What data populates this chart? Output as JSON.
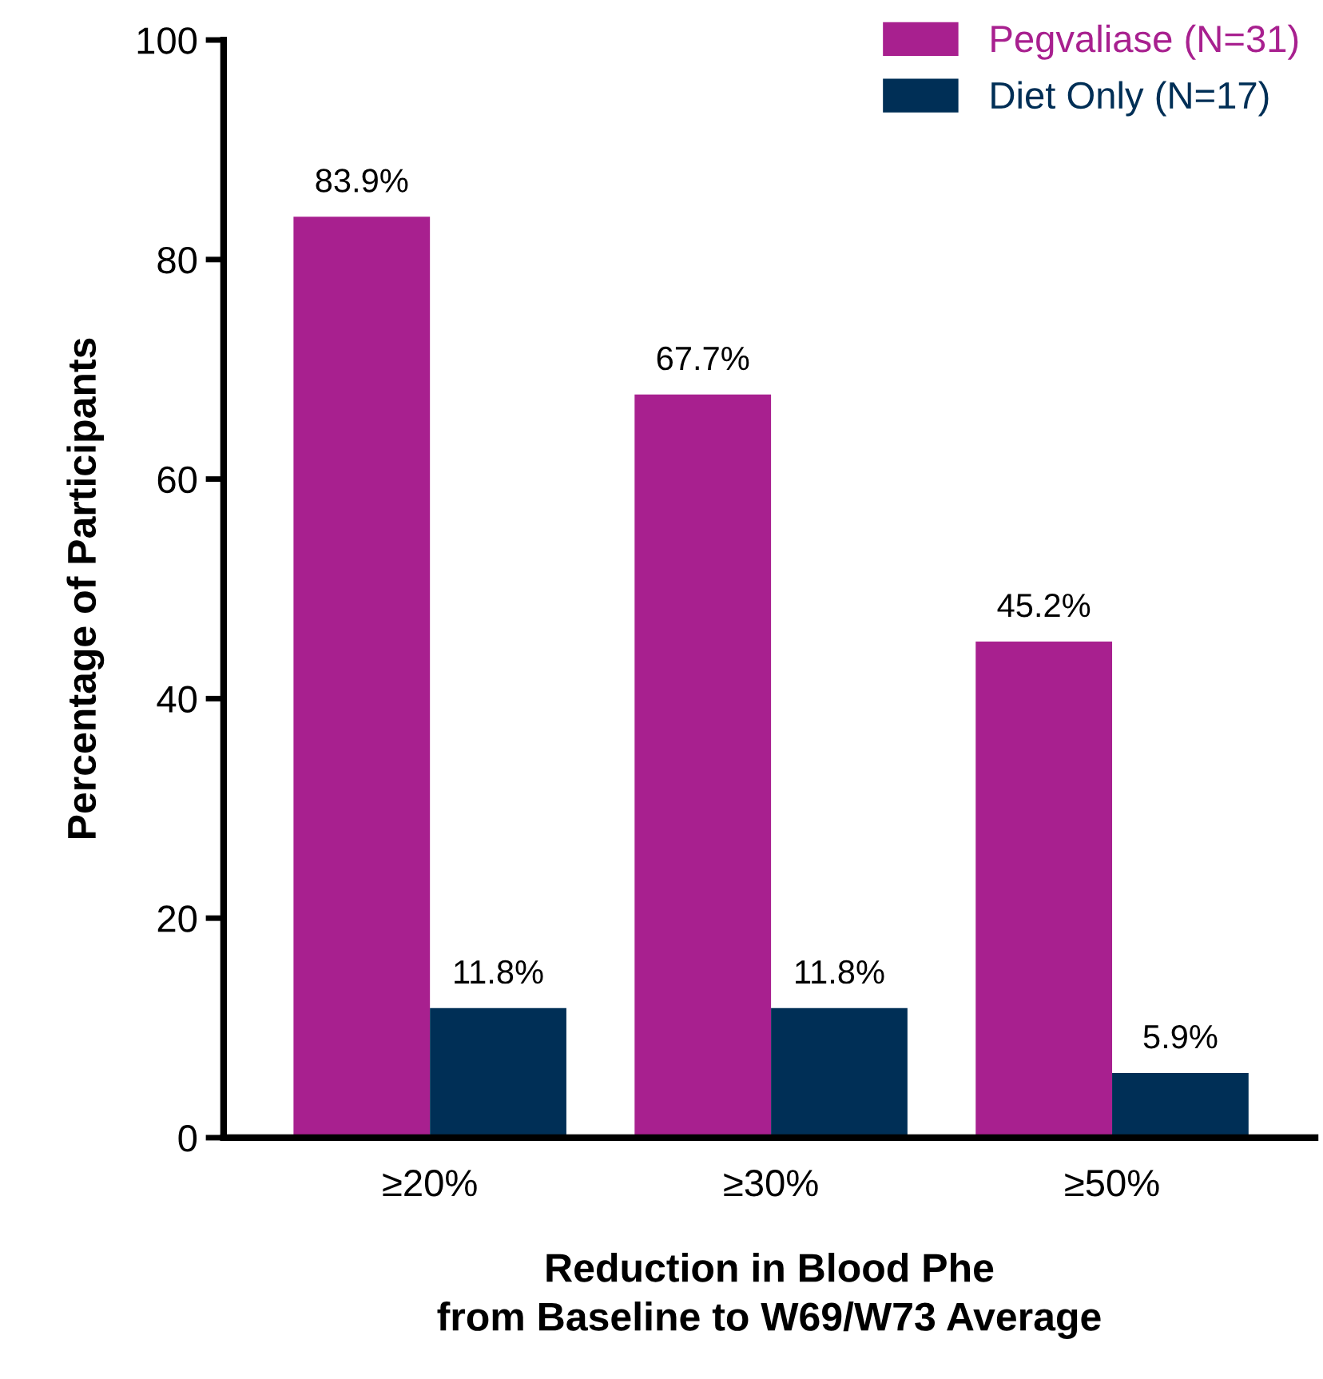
{
  "chart_data": {
    "type": "bar",
    "xlabel": "Reduction in Blood Phe\nfrom Baseline to W69/W73 Average",
    "ylabel": "Percentage of Participants",
    "categories": [
      "≥20%",
      "≥30%",
      "≥50%"
    ],
    "series": [
      {
        "name": "Pegvaliase (N=31)",
        "color": "#a8208f",
        "values": [
          83.9,
          67.7,
          45.2
        ],
        "value_labels": [
          "83.9%",
          "67.7%",
          "45.2%"
        ]
      },
      {
        "name": "Diet Only (N=17)",
        "color": "#002f56",
        "values": [
          11.8,
          11.8,
          5.9
        ],
        "value_labels": [
          "11.8%",
          "11.8%",
          "5.9%"
        ]
      }
    ],
    "ylim": [
      0,
      100
    ],
    "yticks": [
      0,
      20,
      40,
      60,
      80,
      100
    ],
    "grid": false,
    "legend": "top right"
  }
}
